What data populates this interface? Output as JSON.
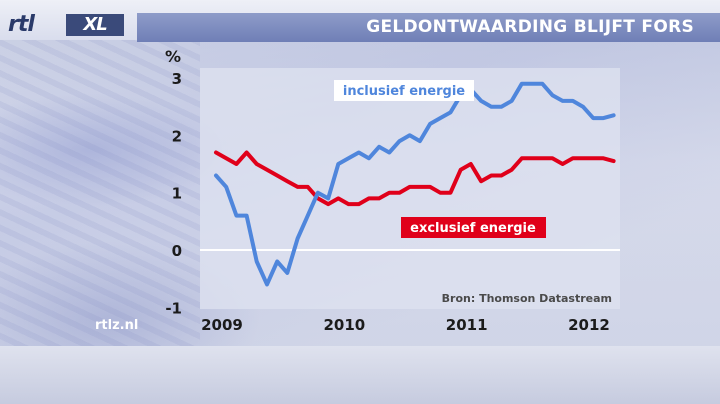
{
  "header": {
    "title": "GELDONTWAARDING BLIJFT FORS",
    "logo_text": "rtlXL"
  },
  "footer": {
    "site": "rtlz.nl"
  },
  "colors": {
    "inclusief": "#4f86dc",
    "exclusief": "#e0001a",
    "title_band": "#7f8ec0"
  },
  "chart_data": {
    "type": "line",
    "title": "GELDONTWAARDING BLIJFT FORS",
    "xlabel": "",
    "ylabel": "%",
    "xlim": [
      2009.0,
      2012.33
    ],
    "ylim": [
      -1,
      3.2
    ],
    "y_ticks": [
      "-1",
      "0",
      "1",
      "2",
      "3"
    ],
    "y_tick_values": [
      -1,
      0,
      1,
      2,
      3
    ],
    "x_ticks": [
      "2009",
      "2010",
      "2011",
      "2012"
    ],
    "x_tick_values": [
      2009,
      2010,
      2011,
      2012
    ],
    "grid": false,
    "zero_line": true,
    "source": "Bron: Thomson Datastream",
    "series": [
      {
        "name": "inclusief energie",
        "x": [
          2009.0,
          2009.083,
          2009.167,
          2009.25,
          2009.333,
          2009.417,
          2009.5,
          2009.583,
          2009.667,
          2009.75,
          2009.833,
          2009.917,
          2010.0,
          2010.083,
          2010.167,
          2010.25,
          2010.333,
          2010.417,
          2010.5,
          2010.583,
          2010.667,
          2010.75,
          2010.833,
          2010.917,
          2011.0,
          2011.083,
          2011.167,
          2011.25,
          2011.333,
          2011.417,
          2011.5,
          2011.583,
          2011.667,
          2011.75,
          2011.833,
          2011.917,
          2012.0,
          2012.083,
          2012.167,
          2012.25
        ],
        "y": [
          1.3,
          1.1,
          0.6,
          0.6,
          -0.2,
          -0.6,
          -0.2,
          -0.4,
          0.2,
          0.6,
          1.0,
          0.9,
          1.5,
          1.6,
          1.7,
          1.6,
          1.8,
          1.7,
          1.9,
          2.0,
          1.9,
          2.2,
          2.3,
          2.4,
          2.7,
          2.8,
          2.6,
          2.5,
          2.5,
          2.6,
          2.9,
          2.9,
          2.9,
          2.7,
          2.6,
          2.6,
          2.5,
          2.3,
          2.3,
          2.35
        ]
      },
      {
        "name": "exclusief energie",
        "x": [
          2009.0,
          2009.083,
          2009.167,
          2009.25,
          2009.333,
          2009.417,
          2009.5,
          2009.583,
          2009.667,
          2009.75,
          2009.833,
          2009.917,
          2010.0,
          2010.083,
          2010.167,
          2010.25,
          2010.333,
          2010.417,
          2010.5,
          2010.583,
          2010.667,
          2010.75,
          2010.833,
          2010.917,
          2011.0,
          2011.083,
          2011.167,
          2011.25,
          2011.333,
          2011.417,
          2011.5,
          2011.583,
          2011.667,
          2011.75,
          2011.833,
          2011.917,
          2012.0,
          2012.083,
          2012.167,
          2012.25
        ],
        "y": [
          1.7,
          1.6,
          1.5,
          1.7,
          1.5,
          1.4,
          1.3,
          1.2,
          1.1,
          1.1,
          0.9,
          0.8,
          0.9,
          0.8,
          0.8,
          0.9,
          0.9,
          1.0,
          1.0,
          1.1,
          1.1,
          1.1,
          1.0,
          1.0,
          1.4,
          1.5,
          1.2,
          1.3,
          1.3,
          1.4,
          1.6,
          1.6,
          1.6,
          1.6,
          1.5,
          1.6,
          1.6,
          1.6,
          1.6,
          1.55
        ]
      }
    ]
  }
}
